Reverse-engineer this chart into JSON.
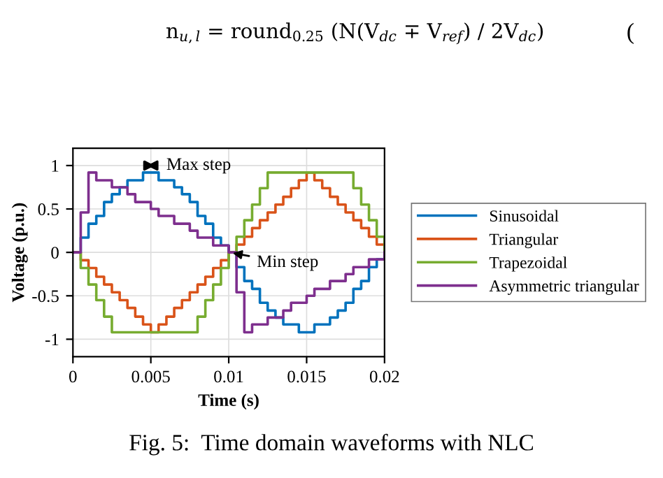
{
  "chart_data": {
    "type": "step",
    "xlabel": "Time (s)",
    "ylabel": "Voltage (p.u.)",
    "x": [
      0,
      0.0005,
      0.001,
      0.0015,
      0.002,
      0.0025,
      0.003,
      0.0035,
      0.004,
      0.0045,
      0.005,
      0.0055,
      0.006,
      0.0065,
      0.007,
      0.0075,
      0.008,
      0.0085,
      0.009,
      0.0095,
      0.01,
      0.0105,
      0.011,
      0.0115,
      0.012,
      0.0125,
      0.013,
      0.0135,
      0.014,
      0.0145,
      0.015,
      0.0155,
      0.016,
      0.0165,
      0.017,
      0.0175,
      0.018,
      0.0185,
      0.019,
      0.0195,
      0.02
    ],
    "series": [
      {
        "name": "Sinusoidal",
        "color": "#0072bd",
        "values": [
          0,
          0.17,
          0.33,
          0.42,
          0.58,
          0.67,
          0.75,
          0.83,
          0.83,
          0.92,
          0.92,
          0.83,
          0.83,
          0.75,
          0.67,
          0.58,
          0.42,
          0.33,
          0.17,
          0.08,
          0,
          -0.17,
          -0.33,
          -0.42,
          -0.58,
          -0.67,
          -0.75,
          -0.83,
          -0.83,
          -0.92,
          -0.92,
          -0.83,
          -0.83,
          -0.75,
          -0.67,
          -0.58,
          -0.42,
          -0.33,
          -0.17,
          -0.08,
          0
        ]
      },
      {
        "name": "Triangular",
        "color": "#d95319",
        "values": [
          0,
          -0.09,
          -0.18,
          -0.28,
          -0.37,
          -0.46,
          -0.55,
          -0.64,
          -0.74,
          -0.83,
          -0.92,
          -0.83,
          -0.74,
          -0.64,
          -0.55,
          -0.46,
          -0.37,
          -0.28,
          -0.18,
          -0.09,
          0,
          0.09,
          0.18,
          0.28,
          0.37,
          0.46,
          0.55,
          0.64,
          0.74,
          0.83,
          0.92,
          0.83,
          0.74,
          0.64,
          0.55,
          0.46,
          0.37,
          0.28,
          0.18,
          0.09,
          0
        ]
      },
      {
        "name": "Trapezoidal",
        "color": "#77ac30",
        "values": [
          0,
          -0.18,
          -0.37,
          -0.55,
          -0.74,
          -0.92,
          -0.92,
          -0.92,
          -0.92,
          -0.92,
          -0.92,
          -0.92,
          -0.92,
          -0.92,
          -0.92,
          -0.92,
          -0.74,
          -0.55,
          -0.37,
          -0.18,
          0,
          0.18,
          0.37,
          0.55,
          0.74,
          0.92,
          0.92,
          0.92,
          0.92,
          0.92,
          0.92,
          0.92,
          0.92,
          0.92,
          0.92,
          0.92,
          0.74,
          0.55,
          0.37,
          0.18,
          0
        ]
      },
      {
        "name": "Asymmetric triangular",
        "color": "#7e2f8e",
        "values": [
          0,
          0.46,
          0.92,
          0.83,
          0.83,
          0.75,
          0.75,
          0.67,
          0.58,
          0.58,
          0.5,
          0.42,
          0.42,
          0.33,
          0.33,
          0.25,
          0.17,
          0.17,
          0.08,
          0.08,
          0,
          -0.46,
          -0.92,
          -0.83,
          -0.83,
          -0.75,
          -0.75,
          -0.67,
          -0.58,
          -0.58,
          -0.5,
          -0.42,
          -0.42,
          -0.33,
          -0.33,
          -0.25,
          -0.17,
          -0.17,
          -0.08,
          -0.08,
          0
        ]
      }
    ],
    "xlim": [
      0,
      0.02
    ],
    "xticks": [
      0,
      0.005,
      0.01,
      0.015,
      0.02
    ],
    "ylim": [
      -1.2,
      1.2
    ],
    "yticks": [
      -1,
      -0.5,
      0,
      0.5,
      1
    ],
    "grid": true,
    "legend": "right",
    "line_style": "solid",
    "annotations": [
      {
        "text": "Max step",
        "x": 0.005,
        "y": 1
      },
      {
        "text": "Min step",
        "x": 0.01,
        "y": 0
      },
      "n$_{u,l}$ = round$_{0.25}$ (N(V$_{dc}$ ∓ V$_{ref}$) / 2V$_{dc}$)",
      "(",
      "Fig. 5:  Time domain waveforms with NLC"
    ]
  }
}
